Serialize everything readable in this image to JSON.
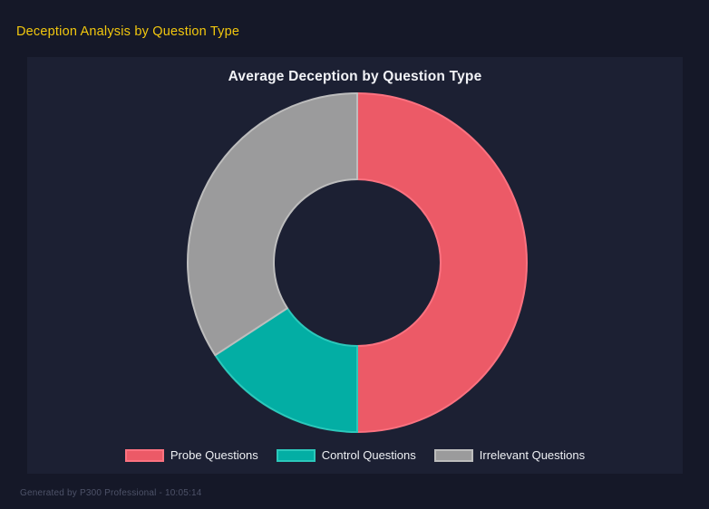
{
  "page": {
    "title": "Deception Analysis by Question Type",
    "footer": "Generated by P300 Professional - 10:05:14"
  },
  "colors": {
    "page_bg": "#151828",
    "panel_bg": "#1c2033",
    "title_yellow": "#f2c70e",
    "chart_title_text": "#f2f3f7",
    "legend_text": "#eef0f4",
    "footer_text": "#4d5268"
  },
  "chart_data": {
    "type": "pie",
    "variant": "donut",
    "title": "Average Deception by Question Type",
    "legend_position": "bottom",
    "start_angle_deg": 0,
    "direction": "clockwise",
    "inner_radius_ratio": 0.49,
    "categories": [
      "Probe Questions",
      "Control Questions",
      "Irrelevant Questions"
    ],
    "values_pct": [
      50.0,
      15.8,
      34.2
    ],
    "segments": [
      {
        "label": "Probe Questions",
        "pct": 50.0,
        "color": "#ec5a67",
        "border": "#fb7280"
      },
      {
        "label": "Control Questions",
        "pct": 15.8,
        "color": "#03aea4",
        "border": "#2cc8bb"
      },
      {
        "label": "Irrelevant Questions",
        "pct": 34.2,
        "color": "#9b9b9c",
        "border": "#bdbdbd"
      }
    ]
  }
}
